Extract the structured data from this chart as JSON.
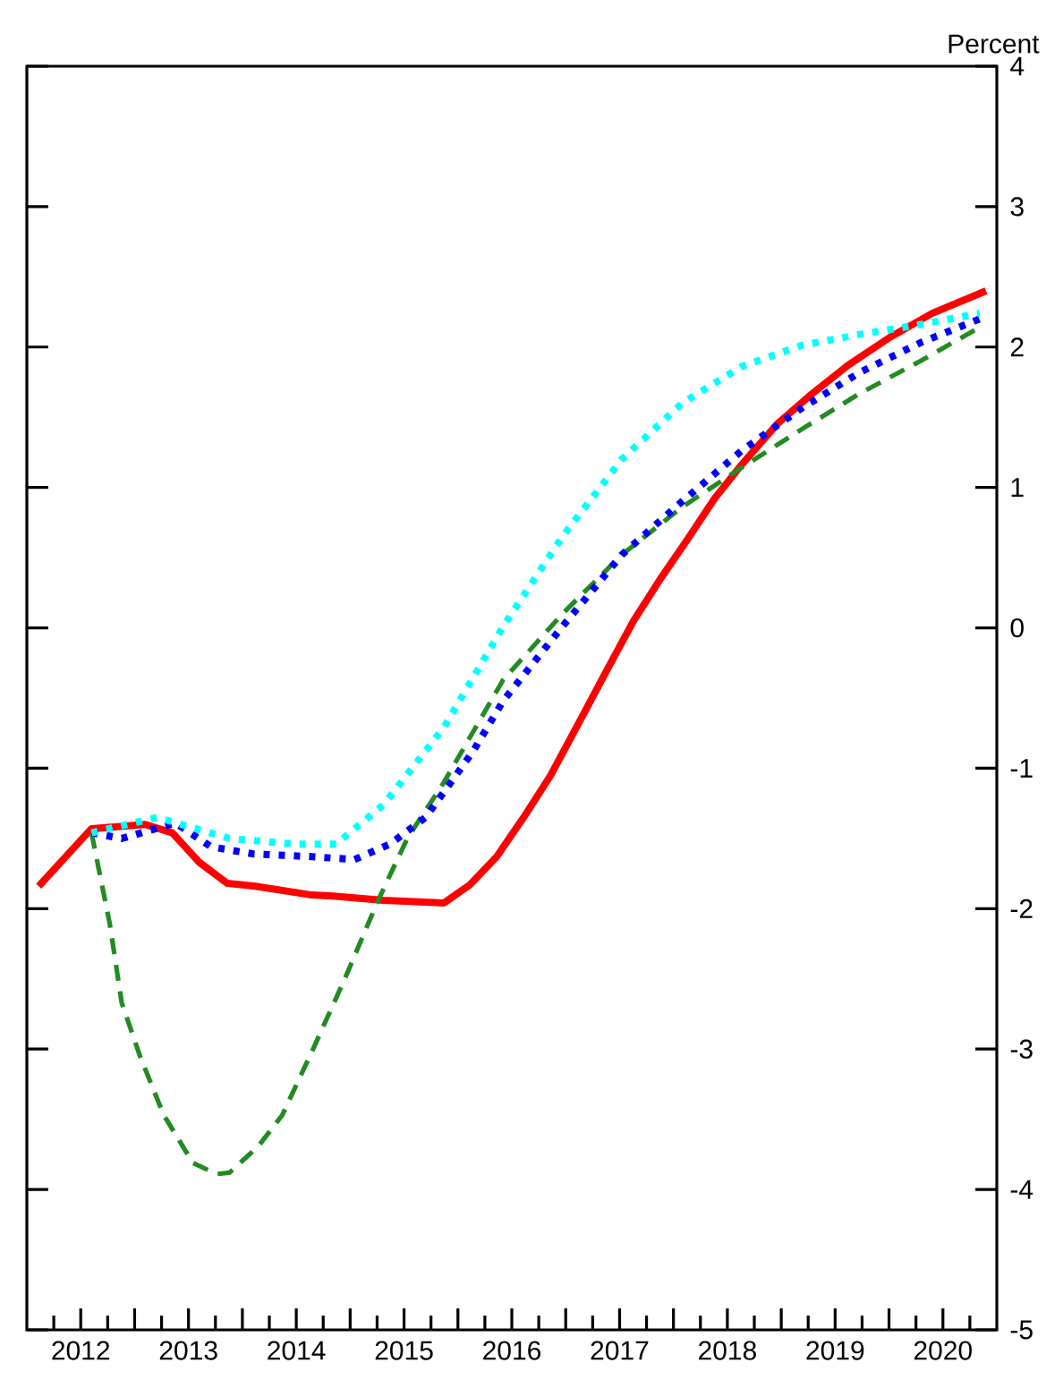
{
  "chart_data": {
    "type": "line",
    "ylabel": "Percent",
    "xlim": [
      2012,
      2021
    ],
    "ylim": [
      -5,
      4
    ],
    "yticks": [
      -5,
      -4,
      -3,
      -2,
      -1,
      0,
      1,
      2,
      3,
      4
    ],
    "xticks": [
      {
        "value": 2012.25,
        "label": null
      },
      {
        "value": 2012.5,
        "label": "2012"
      },
      {
        "value": 2012.75,
        "label": null
      },
      {
        "value": 2013,
        "label": null
      },
      {
        "value": 2013.25,
        "label": null
      },
      {
        "value": 2013.5,
        "label": "2013"
      },
      {
        "value": 2013.75,
        "label": null
      },
      {
        "value": 2014,
        "label": null
      },
      {
        "value": 2014.25,
        "label": null
      },
      {
        "value": 2014.5,
        "label": "2014"
      },
      {
        "value": 2014.75,
        "label": null
      },
      {
        "value": 2015,
        "label": null
      },
      {
        "value": 2015.25,
        "label": null
      },
      {
        "value": 2015.5,
        "label": "2015"
      },
      {
        "value": 2015.75,
        "label": null
      },
      {
        "value": 2016,
        "label": null
      },
      {
        "value": 2016.25,
        "label": null
      },
      {
        "value": 2016.5,
        "label": "2016"
      },
      {
        "value": 2016.75,
        "label": null
      },
      {
        "value": 2017,
        "label": null
      },
      {
        "value": 2017.25,
        "label": null
      },
      {
        "value": 2017.5,
        "label": "2017"
      },
      {
        "value": 2017.75,
        "label": null
      },
      {
        "value": 2018,
        "label": null
      },
      {
        "value": 2018.25,
        "label": null
      },
      {
        "value": 2018.5,
        "label": "2018"
      },
      {
        "value": 2018.75,
        "label": null
      },
      {
        "value": 2019,
        "label": null
      },
      {
        "value": 2019.25,
        "label": null
      },
      {
        "value": 2019.5,
        "label": "2019"
      },
      {
        "value": 2019.75,
        "label": null
      },
      {
        "value": 2020,
        "label": null
      },
      {
        "value": 2020.25,
        "label": null
      },
      {
        "value": 2020.5,
        "label": "2020"
      },
      {
        "value": 2020.75,
        "label": null
      }
    ],
    "grid": false,
    "series": [
      {
        "color": "#ff0000",
        "line_style": "solid",
        "x": [
          2012.11,
          2012.6,
          2013.1,
          2013.35,
          2013.6,
          2013.86,
          2014.12,
          2014.62,
          2014.84,
          2015.31,
          2015.87,
          2016.11,
          2016.36,
          2016.61,
          2016.86,
          2017.14,
          2017.39,
          2017.63,
          2017.88,
          2018.13,
          2018.38,
          2018.63,
          2018.96,
          2019.29,
          2019.62,
          2020.01,
          2020.4,
          2020.9
        ],
        "values": [
          -1.84,
          -1.43,
          -1.4,
          -1.46,
          -1.67,
          -1.82,
          -1.84,
          -1.9,
          -1.91,
          -1.94,
          -1.96,
          -1.83,
          -1.63,
          -1.35,
          -1.05,
          -0.65,
          -0.29,
          0.05,
          0.35,
          0.63,
          0.92,
          1.16,
          1.45,
          1.67,
          1.87,
          2.07,
          2.24,
          2.4
        ]
      },
      {
        "color": "#228b22",
        "line_style": "dashed",
        "x": [
          2012.6,
          2012.77,
          2012.88,
          2013.05,
          2013.27,
          2013.54,
          2013.76,
          2013.88,
          2014.15,
          2014.37,
          2014.65,
          2014.95,
          2015.26,
          2015.53,
          2015.87,
          2016.42,
          2016.97,
          2017.52,
          2018.08,
          2018.63,
          2019.18,
          2019.73,
          2020.29,
          2020.84
        ],
        "values": [
          -1.46,
          -2.11,
          -2.67,
          -3.05,
          -3.47,
          -3.81,
          -3.89,
          -3.88,
          -3.69,
          -3.47,
          -3.01,
          -2.5,
          -1.94,
          -1.5,
          -1.1,
          -0.37,
          0.1,
          0.52,
          0.86,
          1.14,
          1.41,
          1.67,
          1.9,
          2.14
        ]
      },
      {
        "color": "#0000ff",
        "line_style": "dotted",
        "x": [
          2012.6,
          2012.88,
          2013.38,
          2013.71,
          2014.1,
          2014.65,
          2015.04,
          2015.37,
          2015.7,
          2016.14,
          2016.42,
          2016.97,
          2017.52,
          2018.08,
          2018.63,
          2019.18,
          2019.73,
          2020.29,
          2020.84
        ],
        "values": [
          -1.46,
          -1.5,
          -1.39,
          -1.56,
          -1.61,
          -1.63,
          -1.65,
          -1.54,
          -1.35,
          -0.88,
          -0.52,
          0.01,
          0.52,
          0.9,
          1.26,
          1.56,
          1.82,
          2.03,
          2.2
        ]
      },
      {
        "color": "#00ffff",
        "line_style": "dotted",
        "x": [
          2012.6,
          2013.21,
          2013.88,
          2014.48,
          2014.87,
          2015.31,
          2015.87,
          2016.42,
          2016.97,
          2017.52,
          2018.08,
          2018.63,
          2019.18,
          2019.73,
          2020.29,
          2020.84
        ],
        "values": [
          -1.46,
          -1.35,
          -1.5,
          -1.54,
          -1.54,
          -1.26,
          -0.71,
          0.01,
          0.65,
          1.2,
          1.6,
          1.86,
          2.01,
          2.09,
          2.16,
          2.24
        ]
      }
    ]
  }
}
